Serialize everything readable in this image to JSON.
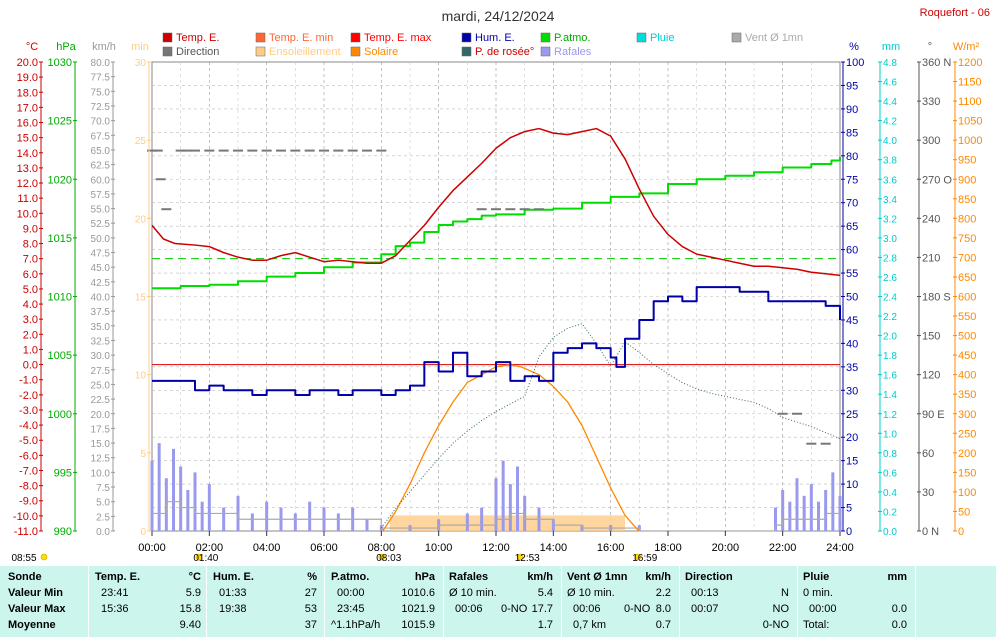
{
  "title": "mardi, 24/12/2024",
  "station": "Roquefort - 06",
  "legend": [
    {
      "label": "Temp. E.",
      "color": "#cc0000",
      "text_color": "#cc0000"
    },
    {
      "label": "Temp. E. min",
      "color": "#ff6633",
      "text_color": "#ff6633"
    },
    {
      "label": "Temp. E. max",
      "color": "#ff0000",
      "text_color": "#ff0000"
    },
    {
      "label": "Hum. E.",
      "color": "#0000aa",
      "text_color": "#0000aa"
    },
    {
      "label": "P.atmo.",
      "color": "#00dd00",
      "text_color": "#00aa00"
    },
    {
      "label": "Pluie",
      "color": "#00dddd",
      "text_color": "#00cccc"
    },
    {
      "label": "Vent Ø 1mn",
      "color": "#aaaaaa",
      "text_color": "#aaaaaa"
    },
    {
      "label": "Direction",
      "color": "#777777",
      "text_color": "#555555"
    },
    {
      "label": "Ensoleillement",
      "color": "#ffcc88",
      "text_color": "#ffcc88"
    },
    {
      "label": "Solaire",
      "color": "#ff8800",
      "text_color": "#ff8800"
    },
    {
      "label": "P. de rosée°",
      "color": "#336666",
      "text_color": "#cc0000"
    },
    {
      "label": "Rafales",
      "color": "#9999ee",
      "text_color": "#9999ee"
    }
  ],
  "axes": {
    "temp": {
      "unit": "°C",
      "min": -11,
      "max": 20,
      "step": 1,
      "color": "#cc0000"
    },
    "press": {
      "unit": "hPa",
      "min": 990,
      "max": 1030,
      "step": 5,
      "color": "#00aa00"
    },
    "wind": {
      "unit": "km/h",
      "min": 0,
      "max": 80,
      "step": 2.5,
      "color": "#999999"
    },
    "minutes": {
      "unit": "min",
      "min": 0,
      "max": 30,
      "step": 5,
      "color": "#ffcc88"
    },
    "hum": {
      "unit": "%",
      "min": 0,
      "max": 100,
      "step": 5,
      "color": "#0000aa"
    },
    "rain": {
      "unit": "mm",
      "min": 0,
      "max": 4.8,
      "step": 0.2,
      "color": "#00cccc"
    },
    "dir": {
      "unit": "°",
      "min": 0,
      "max": 360,
      "step": 30,
      "color": "#555555",
      "labels": {
        "0": "0 N",
        "90": "90 E",
        "180": "180 S",
        "270": "270 O",
        "360": "360 N"
      }
    },
    "solar": {
      "unit": "W/m²",
      "min": 0,
      "max": 1200,
      "step": 50,
      "color": "#ff8800"
    }
  },
  "time_ticks": [
    "00:00",
    "02:00",
    "04:00",
    "06:00",
    "08:00",
    "10:00",
    "12:00",
    "14:00",
    "16:00",
    "18:00",
    "20:00",
    "22:00",
    "24:00"
  ],
  "sun_marks": [
    {
      "label": "08:55",
      "hour": 0
    },
    {
      "label": "01:40",
      "hour": 1.67
    },
    {
      "label": "08:03",
      "hour": 8.05
    },
    {
      "label": "12:53",
      "hour": 12.88
    },
    {
      "label": "16:59",
      "hour": 16.98
    }
  ],
  "chart_data": {
    "type": "line",
    "x_unit": "hour",
    "xlim": [
      0,
      24
    ],
    "grid": true,
    "series": [
      {
        "name": "Temp. E.",
        "axis": "temp",
        "x": [
          0,
          0.4,
          0.8,
          1.5,
          2,
          2.5,
          3,
          3.5,
          4,
          4.5,
          5,
          5.5,
          6,
          6.5,
          7,
          7.5,
          8,
          8.5,
          9,
          9.5,
          10,
          10.5,
          11,
          11.5,
          12,
          12.5,
          13,
          13.5,
          14,
          14.5,
          15,
          15.5,
          16,
          16.5,
          17,
          17.5,
          18,
          18.5,
          19,
          19.5,
          20,
          20.5,
          21,
          21.5,
          22,
          22.5,
          23,
          23.5,
          24
        ],
        "y": [
          9.2,
          8.3,
          8.0,
          7.9,
          7.8,
          7.4,
          7.1,
          6.9,
          6.9,
          7.2,
          7.4,
          7.1,
          6.8,
          6.9,
          6.8,
          6.7,
          6.7,
          7.2,
          8.2,
          9.2,
          10.4,
          11.5,
          12.4,
          13.3,
          14.3,
          15.0,
          15.4,
          15.6,
          15.3,
          15.2,
          15.4,
          15.6,
          15.1,
          13.6,
          11.6,
          9.8,
          8.6,
          7.8,
          7.3,
          7.1,
          6.9,
          6.7,
          6.5,
          6.5,
          6.4,
          6.3,
          6.1,
          6.0,
          5.9
        ]
      },
      {
        "name": "P.atmo.",
        "axis": "press",
        "x": [
          0,
          1,
          2,
          3,
          4,
          5,
          6,
          7,
          8,
          8.5,
          9,
          9.5,
          10,
          10.5,
          11,
          11.5,
          12,
          13,
          14,
          15,
          16,
          17,
          18,
          19,
          20,
          21,
          22,
          23,
          23.7,
          24
        ],
        "y": [
          1010.7,
          1010.9,
          1011.0,
          1011.3,
          1011.7,
          1012.0,
          1012.5,
          1012.9,
          1013.6,
          1014.3,
          1014.6,
          1015.5,
          1016.1,
          1016.4,
          1016.6,
          1016.9,
          1017.0,
          1017.4,
          1017.5,
          1018.0,
          1018.5,
          1018.8,
          1019.6,
          1020.0,
          1020.3,
          1020.6,
          1021.0,
          1021.3,
          1021.6,
          1021.9
        ]
      },
      {
        "name": "Hum. E.",
        "axis": "hum",
        "x": [
          0,
          0.5,
          1,
          1.5,
          2,
          2.5,
          3,
          3.5,
          4,
          4.5,
          5,
          5.5,
          6,
          6.5,
          7,
          7.5,
          8,
          8.5,
          9,
          9.5,
          10,
          10.5,
          11,
          11.5,
          12,
          12.5,
          13,
          13.5,
          14,
          14.5,
          15,
          15.5,
          16,
          16.2,
          16.5,
          17,
          17.5,
          18,
          18.5,
          19,
          19.5,
          20,
          20.5,
          21,
          21.5,
          22,
          22.5,
          23,
          23.5,
          24
        ],
        "y": [
          32,
          32,
          32,
          30,
          31,
          30,
          30,
          29,
          30,
          30,
          29,
          30,
          30,
          29,
          30,
          30,
          29,
          30,
          31,
          36,
          34,
          38,
          33,
          34,
          36,
          32,
          33,
          32,
          38,
          39,
          40,
          39,
          37,
          35,
          41,
          45,
          49,
          50,
          49,
          52,
          52,
          52,
          51,
          51,
          49,
          49,
          49,
          49,
          48,
          45
        ]
      },
      {
        "name": "P. de rosée°",
        "axis": "temp",
        "x": [
          8,
          8.5,
          9,
          9.5,
          10,
          10.5,
          11,
          11.5,
          12,
          12.5,
          13,
          13.5,
          14,
          14.5,
          15,
          15.5,
          16,
          16.5,
          17,
          17.5,
          18,
          18.5,
          19,
          19.5,
          20,
          20.5,
          21,
          21.5,
          22,
          22.5,
          23,
          23.5,
          24
        ],
        "y": [
          -10.8,
          -9.5,
          -8.4,
          -7.3,
          -6.2,
          -5.2,
          -4.4,
          -3.7,
          -3.1,
          -2.6,
          -2.1,
          0.5,
          1.8,
          2.4,
          2.7,
          1.4,
          -0.1,
          1.5,
          0.8,
          0.0,
          -0.6,
          -1.2,
          -1.6,
          -1.9,
          -2.1,
          -2.3,
          -2.5,
          -2.9,
          -3.5,
          -3.8,
          -4.1,
          -4.5,
          -4.9
        ]
      },
      {
        "name": "Solaire",
        "axis": "solar",
        "x": [
          8.05,
          8.5,
          9,
          9.5,
          10,
          10.5,
          11,
          11.5,
          12,
          12.5,
          12.88,
          13.5,
          14,
          14.5,
          15,
          15.5,
          16,
          16.5,
          16.98
        ],
        "y": [
          0,
          50,
          120,
          200,
          270,
          330,
          380,
          400,
          420,
          425,
          420,
          400,
          370,
          330,
          270,
          190,
          110,
          40,
          0
        ]
      },
      {
        "name": "Ensoleillement",
        "axis": "minutes",
        "x": [
          8.3,
          16.5
        ],
        "y": [
          1,
          1
        ]
      },
      {
        "name": "Rafales",
        "axis": "wind",
        "x": [
          0,
          0.25,
          0.5,
          0.75,
          1,
          1.25,
          1.5,
          1.75,
          2,
          2.5,
          3,
          3.5,
          4,
          4.5,
          5,
          5.5,
          6,
          6.5,
          7,
          7.5,
          8,
          9,
          10,
          11,
          11.5,
          12,
          12.25,
          12.5,
          12.75,
          13,
          13.5,
          14,
          15,
          16,
          17,
          18,
          19,
          20,
          21,
          21.75,
          22,
          22.25,
          22.5,
          22.75,
          23,
          23.25,
          23.5,
          23.75,
          24
        ],
        "y": [
          12,
          15,
          9,
          14,
          11,
          7,
          10,
          5,
          8,
          4,
          6,
          3,
          5,
          4,
          3,
          5,
          4,
          3,
          4,
          2,
          1,
          1,
          2,
          3,
          4,
          9,
          12,
          8,
          11,
          6,
          4,
          2,
          1,
          1,
          1,
          0,
          0,
          0,
          0,
          4,
          7,
          5,
          9,
          6,
          8,
          5,
          7,
          10,
          6
        ]
      },
      {
        "name": "Vent Ø 1mn",
        "axis": "wind",
        "x": [
          0,
          0.5,
          1,
          1.5,
          2,
          3,
          4,
          5,
          6,
          7,
          8,
          9,
          10,
          11,
          12,
          12.5,
          13,
          14,
          15,
          16,
          17,
          18,
          19,
          20,
          21,
          21.75,
          22,
          22.5,
          23,
          23.5,
          24
        ],
        "y": [
          3,
          5,
          4,
          3,
          3,
          2,
          2,
          2,
          2,
          2,
          0.5,
          0.5,
          1,
          1,
          2,
          3,
          2,
          1,
          0.5,
          0.5,
          0,
          0,
          0,
          0,
          0,
          1,
          2,
          2,
          2,
          3,
          2
        ]
      },
      {
        "name": "Direction",
        "axis": "dir",
        "x": [
          0.0,
          0.2,
          0.3,
          0.5,
          1,
          1.2,
          1.5,
          2,
          2.5,
          3,
          3.5,
          4,
          4.5,
          5,
          5.5,
          6,
          6.5,
          7,
          7.5,
          8,
          11.5,
          12,
          12.5,
          13,
          13.5,
          22,
          22.5,
          23,
          23.5
        ],
        "y": [
          292,
          292,
          270,
          247,
          292,
          292,
          292,
          292,
          292,
          292,
          292,
          292,
          292,
          292,
          292,
          292,
          292,
          292,
          292,
          292,
          247,
          247,
          247,
          247,
          247,
          90,
          90,
          67,
          67
        ]
      }
    ]
  },
  "stats": {
    "headers": {
      "sonde": "Sonde",
      "temp": "Temp. E.",
      "temp_unit": "°C",
      "hum": "Hum. E.",
      "hum_unit": "%",
      "press": "P.atmo.",
      "press_unit": "hPa",
      "gust": "Rafales",
      "gust_unit": "km/h",
      "wind": "Vent Ø 1mn",
      "wind_unit": "km/h",
      "dir": "Direction",
      "rain": "Pluie",
      "rain_unit": "mm"
    },
    "rows": [
      {
        "label": "Valeur Min",
        "temp_time": "23:41",
        "temp_val": "5.9",
        "hum_time": "01:33",
        "hum_val": "27",
        "press_time": "00:00",
        "press_val": "1010.6",
        "gust_note": "Ø 10 min.",
        "gust_val": "5.4",
        "wind_note": "Ø 10 min.",
        "wind_val": "2.2",
        "dir_time": "00:13",
        "dir_val": "N",
        "rain_note": "0 min.",
        "rain_val": ""
      },
      {
        "label": "Valeur Max",
        "temp_time": "15:36",
        "temp_val": "15.8",
        "hum_time": "19:38",
        "hum_val": "53",
        "press_time": "23:45",
        "press_val": "1021.9",
        "gust_time": "00:06",
        "gust_dir": "0-NO",
        "gust_val": "17.7",
        "wind_time": "00:06",
        "wind_dir": "0-NO",
        "wind_val": "8.0",
        "dir_time": "00:07",
        "dir_val": "NO",
        "rain_time": "00:00",
        "rain_val": "0.0"
      },
      {
        "label": "Moyenne",
        "temp_time": "",
        "temp_val": "9.40",
        "hum_time": "",
        "hum_val": "37",
        "press_time": "^1.1hPa/h",
        "press_val": "1015.9",
        "gust_note": "",
        "gust_val": "1.7",
        "wind_note": "0,7 km",
        "wind_val": "0.7",
        "dir_time": "",
        "dir_val": "0-NO",
        "rain_note": "Total:",
        "rain_val": "0.0"
      }
    ]
  }
}
